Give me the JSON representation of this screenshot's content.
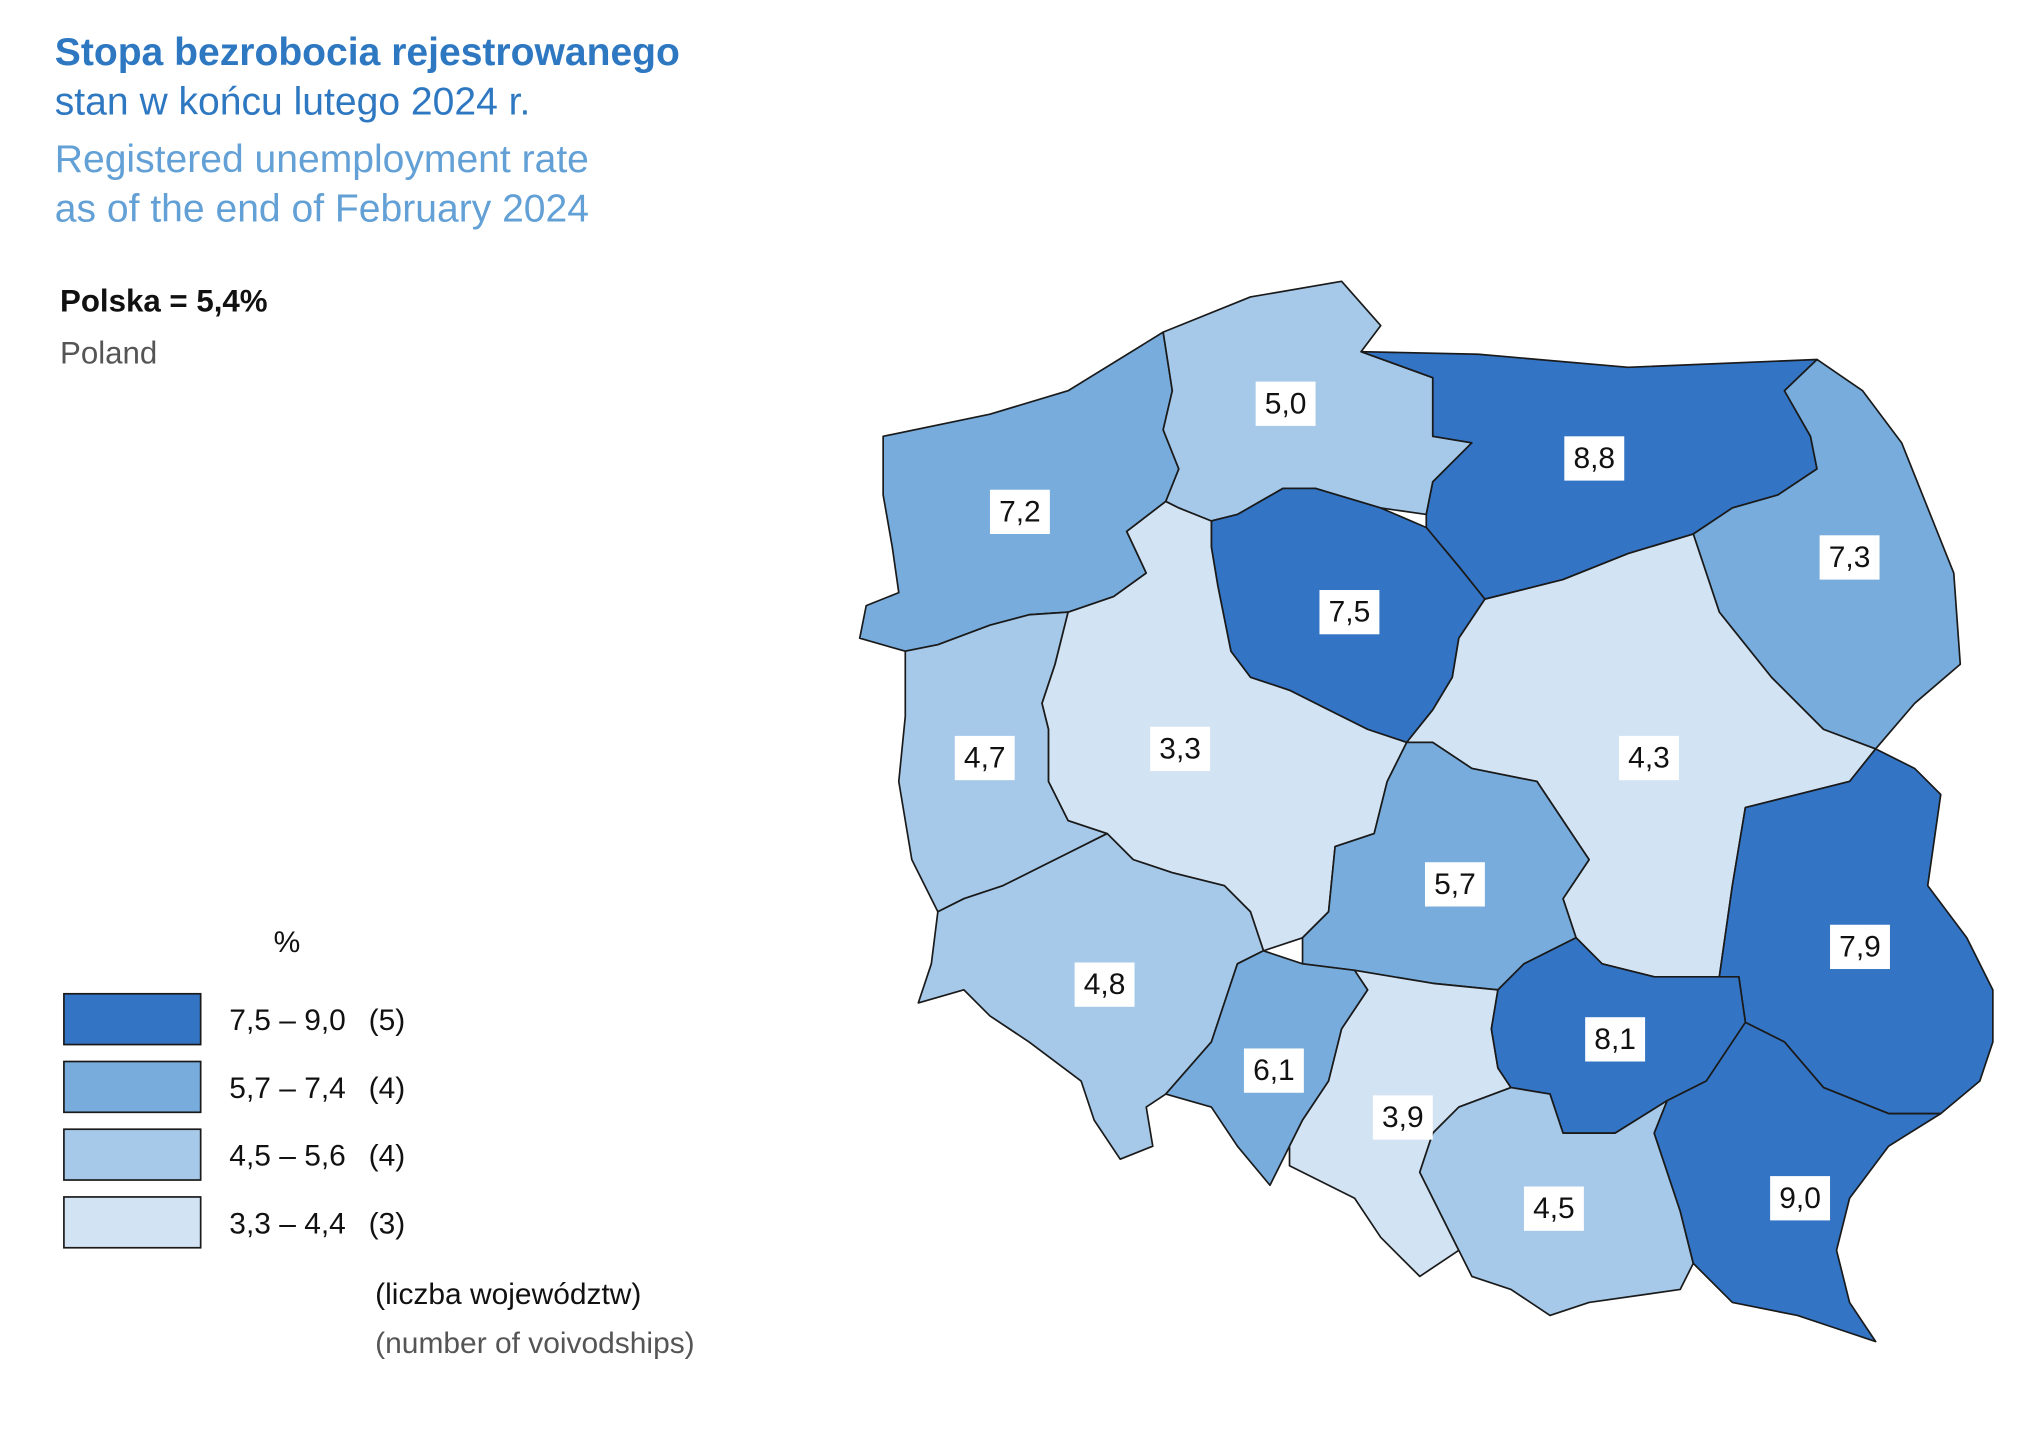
{
  "title": {
    "pl": "Stopa bezrobocia rejestrowanego",
    "pl_sub": "stan w końcu lutego 2024 r.",
    "en_line1": "Registered unemployment rate",
    "en_line2": "as of the end of February 2024"
  },
  "national": {
    "pl": "Polska = 5,4%",
    "en": "Poland"
  },
  "legend": {
    "unit": "%",
    "classes": [
      {
        "label": "7,5 – 9,0",
        "count": "(5)",
        "min": 7.5,
        "max": 9.0,
        "color": "#3374c4"
      },
      {
        "label": "5,7 – 7,4",
        "count": "(4)",
        "min": 5.7,
        "max": 7.4,
        "color": "#77acdc"
      },
      {
        "label": "4,5 – 5,6",
        "count": "(4)",
        "min": 4.5,
        "max": 5.6,
        "color": "#a6c9e9"
      },
      {
        "label": "3,3 – 4,4",
        "count": "(3)",
        "min": 3.3,
        "max": 4.4,
        "color": "#d2e3f3"
      }
    ],
    "note_pl": "(liczba województw)",
    "note_en": "(number of voivodships)"
  },
  "regions": [
    {
      "value": 7.2,
      "label": "7,2"
    },
    {
      "value": 5.0,
      "label": "5,0"
    },
    {
      "value": 8.8,
      "label": "8,8"
    },
    {
      "value": 7.3,
      "label": "7,3"
    },
    {
      "value": 7.5,
      "label": "7,5"
    },
    {
      "value": 4.7,
      "label": "4,7"
    },
    {
      "value": 3.3,
      "label": "3,3"
    },
    {
      "value": 4.3,
      "label": "4,3"
    },
    {
      "value": 5.7,
      "label": "5,7"
    },
    {
      "value": 7.9,
      "label": "7,9"
    },
    {
      "value": 4.8,
      "label": "4,8"
    },
    {
      "value": 6.1,
      "label": "6,1"
    },
    {
      "value": 3.9,
      "label": "3,9"
    },
    {
      "value": 8.1,
      "label": "8,1"
    },
    {
      "value": 4.5,
      "label": "4,5"
    },
    {
      "value": 9.0,
      "label": "9,0"
    }
  ]
}
